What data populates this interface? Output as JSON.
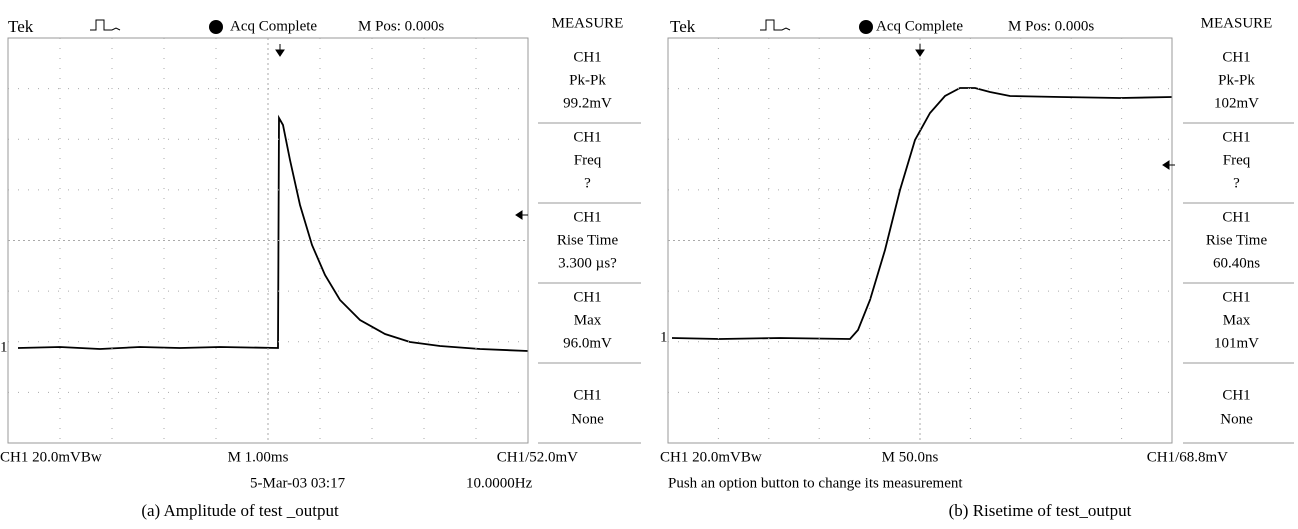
{
  "panels": [
    {
      "header": {
        "brand": "Tek",
        "status": "Acq Complete",
        "position": "M Pos: 0.000s"
      },
      "measure_title": "MEASURE",
      "measures": [
        {
          "channel": "CH1",
          "name": "Pk-Pk",
          "value": "99.2mV"
        },
        {
          "channel": "CH1",
          "name": "Freq",
          "value": "?"
        },
        {
          "channel": "CH1",
          "name": "Rise Time",
          "value": "3.300 µs?"
        },
        {
          "channel": "CH1",
          "name": "Max",
          "value": "96.0mV"
        },
        {
          "channel": "CH1",
          "name": "None"
        }
      ],
      "channel_marker": "1",
      "footer": {
        "left": "CH1 20.0mVBw",
        "center": "M 1.00ms",
        "right": "CH1/52.0mV",
        "notes": [
          "5-Mar-03 03:17",
          "10.0000Hz"
        ]
      },
      "caption": "(a) Amplitude of test _output"
    },
    {
      "header": {
        "brand": "Tek",
        "status": "Acq Complete",
        "position": "M Pos: 0.000s"
      },
      "measure_title": "MEASURE",
      "measures": [
        {
          "channel": "CH1",
          "name": "Pk-Pk",
          "value": "102mV"
        },
        {
          "channel": "CH1",
          "name": "Freq",
          "value": "?"
        },
        {
          "channel": "CH1",
          "name": "Rise Time",
          "value": "60.40ns"
        },
        {
          "channel": "CH1",
          "name": "Max",
          "value": "101mV"
        },
        {
          "channel": "CH1",
          "name": "None"
        }
      ],
      "channel_marker": "1",
      "footer": {
        "left": "CH1 20.0mVBw",
        "center": "M 50.0ns",
        "right": "CH1/68.8mV",
        "notes": [
          "Push an option button to change its measurement"
        ]
      },
      "caption": "(b) Risetime of test_output"
    }
  ]
}
